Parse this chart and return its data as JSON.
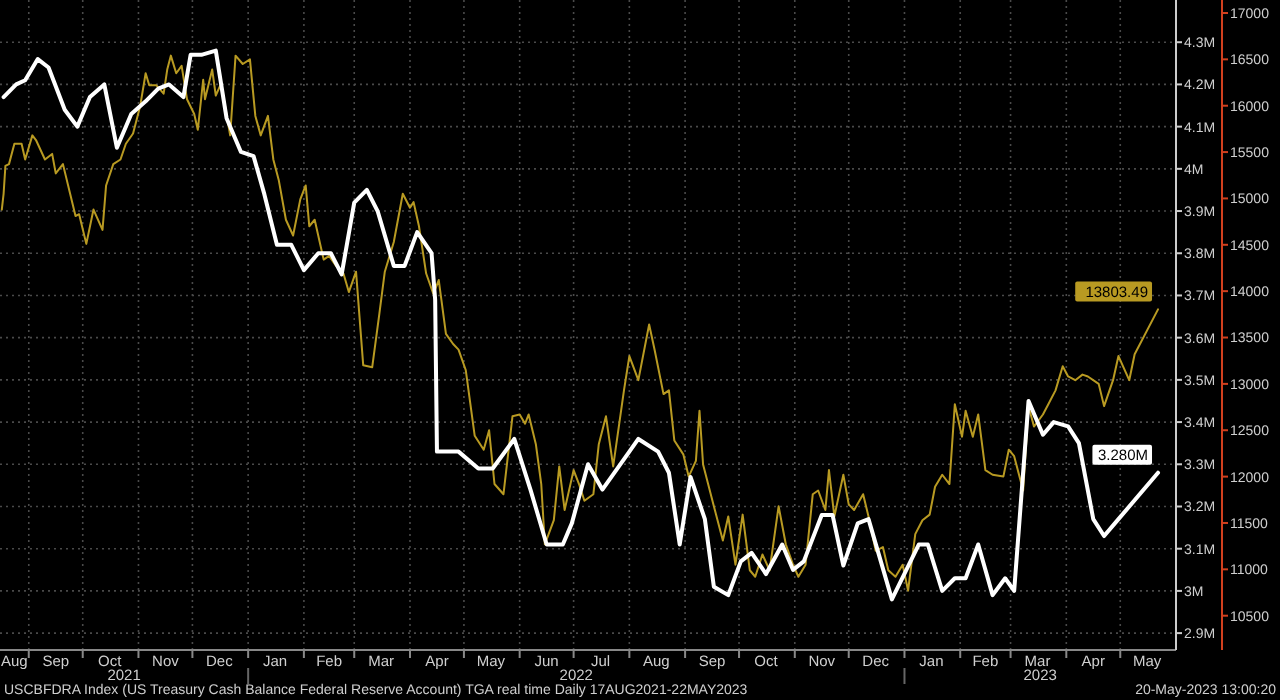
{
  "chart_data": {
    "type": "line",
    "xlim": [
      "2021-08-16",
      "2023-06-01"
    ],
    "xticks": [
      {
        "value": "2021-09-01",
        "label": null
      },
      {
        "value": "2021-10-01",
        "label": null
      },
      {
        "value": "2021-11-01",
        "label": null
      },
      {
        "value": "2021-12-01",
        "label": null
      },
      {
        "value": "2022-01-01",
        "label": null
      },
      {
        "value": "2022-02-01",
        "label": null
      },
      {
        "value": "2022-03-01",
        "label": null
      },
      {
        "value": "2022-04-01",
        "label": null
      },
      {
        "value": "2022-05-01",
        "label": null
      },
      {
        "value": "2022-06-01",
        "label": null
      },
      {
        "value": "2022-07-01",
        "label": null
      },
      {
        "value": "2022-08-01",
        "label": null
      },
      {
        "value": "2022-09-01",
        "label": null
      },
      {
        "value": "2022-10-01",
        "label": null
      },
      {
        "value": "2022-11-01",
        "label": null
      },
      {
        "value": "2022-12-01",
        "label": null
      },
      {
        "value": "2023-01-01",
        "label": null
      },
      {
        "value": "2023-02-01",
        "label": null
      },
      {
        "value": "2023-03-01",
        "label": null
      },
      {
        "value": "2023-04-01",
        "label": null
      },
      {
        "value": "2023-05-01",
        "label": null
      },
      {
        "value": "2021-08-24",
        "label": "Aug"
      },
      {
        "value": "2021-09-16",
        "label": "Sep"
      },
      {
        "value": "2021-10-16",
        "label": "Oct"
      },
      {
        "value": "2021-11-16",
        "label": "Nov"
      },
      {
        "value": "2021-12-16",
        "label": "Dec"
      },
      {
        "value": "2022-01-16",
        "label": "Jan"
      },
      {
        "value": "2022-02-15",
        "label": "Feb"
      },
      {
        "value": "2022-03-16",
        "label": "Mar"
      },
      {
        "value": "2022-04-16",
        "label": "Apr"
      },
      {
        "value": "2022-05-16",
        "label": "May"
      },
      {
        "value": "2022-06-16",
        "label": "Jun"
      },
      {
        "value": "2022-07-16",
        "label": "Jul"
      },
      {
        "value": "2022-08-16",
        "label": "Aug"
      },
      {
        "value": "2022-09-16",
        "label": "Sep"
      },
      {
        "value": "2022-10-16",
        "label": "Oct"
      },
      {
        "value": "2022-11-16",
        "label": "Nov"
      },
      {
        "value": "2022-12-16",
        "label": "Dec"
      },
      {
        "value": "2023-01-16",
        "label": "Jan"
      },
      {
        "value": "2023-02-15",
        "label": "Feb"
      },
      {
        "value": "2023-03-16",
        "label": "Mar"
      },
      {
        "value": "2023-04-16",
        "label": "Apr"
      },
      {
        "value": "2023-05-16",
        "label": "May"
      }
    ],
    "ylim": [
      2.86,
      4.4
    ],
    "yticks": [
      {
        "value": 2.9,
        "label": "2.9M"
      },
      {
        "value": 3,
        "label": "3M"
      },
      {
        "value": 3.1,
        "label": "3.1M"
      },
      {
        "value": 3.2,
        "label": "3.2M"
      },
      {
        "value": 3.3,
        "label": "3.3M"
      },
      {
        "value": 3.4,
        "label": "3.4M"
      },
      {
        "value": 3.5,
        "label": "3.5M"
      },
      {
        "value": 3.6,
        "label": "3.6M"
      },
      {
        "value": 3.7,
        "label": "3.7M"
      },
      {
        "value": 3.8,
        "label": "3.8M"
      },
      {
        "value": 3.9,
        "label": "3.9M"
      },
      {
        "value": 4,
        "label": "4M"
      },
      {
        "value": 4.1,
        "label": "4.1M"
      },
      {
        "value": 4.2,
        "label": "4.2M"
      },
      {
        "value": 4.3,
        "label": "4.3M"
      }
    ],
    "y2lim": [
      10130,
      17140
    ],
    "y2ticks": [
      10500,
      11000,
      11500,
      12000,
      12500,
      13000,
      13500,
      14000,
      14500,
      15000,
      15500,
      16000,
      16500,
      17000
    ],
    "grid": true,
    "annotations": [
      "2021",
      "2022",
      "2023",
      "USCBFDRA Index (US Treasury Cash Balance Federal Reserve Account) TGA real time  Daily 17AUG2021-22MAY2023",
      "20-May-2023 13:00:20"
    ],
    "series": [
      {
        "color": "#b89a22",
        "axis": "y2",
        "x": [
          "2021-08-17",
          "2021-08-18",
          "2021-08-19",
          "2021-08-21",
          "2021-08-24",
          "2021-08-28",
          "2021-08-30",
          "2021-09-03",
          "2021-09-05",
          "2021-09-10",
          "2021-09-14",
          "2021-09-16",
          "2021-09-20",
          "2021-09-24",
          "2021-09-27",
          "2021-09-29",
          "2021-10-03",
          "2021-10-07",
          "2021-10-12",
          "2021-10-14",
          "2021-10-18",
          "2021-10-22",
          "2021-10-25",
          "2021-10-29",
          "2021-11-02",
          "2021-11-05",
          "2021-11-07",
          "2021-11-11",
          "2021-11-15",
          "2021-11-17",
          "2021-11-19",
          "2021-11-22",
          "2021-11-25",
          "2021-11-28",
          "2021-12-02",
          "2021-12-04",
          "2021-12-07",
          "2021-12-08",
          "2021-12-12",
          "2021-12-14",
          "2021-12-17",
          "2021-12-22",
          "2021-12-25",
          "2021-12-29",
          "2022-01-02",
          "2022-01-05",
          "2022-01-08",
          "2022-01-12",
          "2022-01-15",
          "2022-01-18",
          "2022-01-22",
          "2022-01-26",
          "2022-01-30",
          "2022-02-02",
          "2022-02-04",
          "2022-02-07",
          "2022-02-12",
          "2022-02-15",
          "2022-02-19",
          "2022-02-23",
          "2022-02-26",
          "2022-03-02",
          "2022-03-06",
          "2022-03-11",
          "2022-03-15",
          "2022-03-18",
          "2022-03-23",
          "2022-03-28",
          "2022-04-01",
          "2022-04-03",
          "2022-04-06",
          "2022-04-10",
          "2022-04-14",
          "2022-04-17",
          "2022-04-21",
          "2022-04-25",
          "2022-04-28",
          "2022-05-02",
          "2022-05-07",
          "2022-05-12",
          "2022-05-15",
          "2022-05-18",
          "2022-05-23",
          "2022-05-28",
          "2022-06-01",
          "2022-06-04",
          "2022-06-06",
          "2022-06-10",
          "2022-06-13",
          "2022-06-15",
          "2022-06-20",
          "2022-06-23",
          "2022-06-26",
          "2022-07-01",
          "2022-07-04",
          "2022-07-07",
          "2022-07-12",
          "2022-07-15",
          "2022-07-19",
          "2022-07-23",
          "2022-07-29",
          "2022-08-01",
          "2022-08-06",
          "2022-08-12",
          "2022-08-15",
          "2022-08-20",
          "2022-08-23",
          "2022-08-26",
          "2022-08-31",
          "2022-09-03",
          "2022-09-07",
          "2022-09-09",
          "2022-09-11",
          "2022-09-17",
          "2022-09-22",
          "2022-09-25",
          "2022-09-29",
          "2022-10-03",
          "2022-10-07",
          "2022-10-10",
          "2022-10-14",
          "2022-10-18",
          "2022-10-23",
          "2022-10-27",
          "2022-10-31",
          "2022-11-03",
          "2022-11-07",
          "2022-11-11",
          "2022-11-14",
          "2022-11-18",
          "2022-11-20",
          "2022-11-23",
          "2022-11-28",
          "2022-12-01",
          "2022-12-04",
          "2022-12-09",
          "2022-12-12",
          "2022-12-16",
          "2022-12-20",
          "2022-12-23",
          "2022-12-27",
          "2022-12-31",
          "2023-01-03",
          "2023-01-07",
          "2023-01-11",
          "2023-01-15",
          "2023-01-18",
          "2023-01-22",
          "2023-01-26",
          "2023-01-29",
          "2023-02-02",
          "2023-02-04",
          "2023-02-08",
          "2023-02-11",
          "2023-02-15",
          "2023-02-19",
          "2023-02-25",
          "2023-02-28",
          "2023-03-03",
          "2023-03-08",
          "2023-03-11",
          "2023-03-14",
          "2023-03-19",
          "2023-03-22",
          "2023-03-26",
          "2023-03-30",
          "2023-04-02",
          "2023-04-06",
          "2023-04-10",
          "2023-04-13",
          "2023-04-19",
          "2023-04-22",
          "2023-04-27",
          "2023-04-30",
          "2023-05-06",
          "2023-05-09",
          "2023-05-22"
        ],
        "values": [
          14880,
          15050,
          15350,
          15370,
          15590,
          15590,
          15420,
          15680,
          15630,
          15420,
          15480,
          15270,
          15370,
          15050,
          14810,
          14830,
          14510,
          14880,
          14660,
          15140,
          15370,
          15420,
          15590,
          15700,
          16000,
          16350,
          16220,
          16220,
          16130,
          16390,
          16540,
          16350,
          16430,
          16070,
          15910,
          15740,
          16280,
          16070,
          16390,
          16110,
          16240,
          15680,
          16540,
          16450,
          16500,
          15890,
          15680,
          15890,
          15420,
          15200,
          14770,
          14600,
          14990,
          15140,
          14700,
          14770,
          14340,
          14380,
          14270,
          14190,
          13990,
          14210,
          13200,
          13180,
          13760,
          14210,
          14530,
          15050,
          14900,
          14960,
          14700,
          14190,
          13970,
          14120,
          13540,
          13430,
          13370,
          13150,
          12440,
          12290,
          12500,
          11920,
          11810,
          12650,
          12670,
          12570,
          12670,
          12350,
          11920,
          11270,
          11530,
          12110,
          11640,
          12070,
          11920,
          11740,
          11810,
          12350,
          12650,
          12110,
          12930,
          13300,
          13040,
          13640,
          13370,
          12890,
          12930,
          12390,
          12240,
          12000,
          12170,
          12710,
          12130,
          11680,
          11310,
          11570,
          11050,
          11590,
          10990,
          10920,
          11160,
          10990,
          11680,
          11270,
          11050,
          10920,
          11050,
          11810,
          11850,
          11640,
          12070,
          11570,
          12020,
          11700,
          11640,
          11810,
          11570,
          11200,
          11240,
          10990,
          10920,
          11050,
          10770,
          11380,
          11530,
          11590,
          11890,
          12020,
          11920,
          12780,
          12430,
          12710,
          12430,
          12670,
          12070,
          12020,
          12000,
          12290,
          12220,
          11850,
          12760,
          12540,
          12670,
          12780,
          12930,
          13190,
          13080,
          13040,
          13100,
          13080,
          13000,
          12760,
          13040,
          13300,
          13040,
          13320,
          13803.49
        ],
        "value_labels": [
          null,
          null,
          null,
          null,
          null,
          null,
          null,
          null,
          null,
          null,
          null,
          null,
          null,
          null,
          null,
          null,
          null,
          null,
          null,
          null,
          null,
          null,
          null,
          null,
          null,
          null,
          null,
          null,
          null,
          null,
          null,
          null,
          null,
          null,
          null,
          null,
          null,
          null,
          null,
          null,
          null,
          null,
          null,
          null,
          null,
          null,
          null,
          null,
          null,
          null,
          null,
          null,
          null,
          null,
          null,
          null,
          null,
          null,
          null,
          null,
          null,
          null,
          null,
          null,
          null,
          null,
          null,
          null,
          null,
          null,
          null,
          null,
          null,
          null,
          null,
          null,
          null,
          null,
          null,
          null,
          null,
          null,
          null,
          null,
          null,
          null,
          null,
          null,
          null,
          null,
          null,
          null,
          null,
          null,
          null,
          null,
          null,
          null,
          null,
          null,
          null,
          null,
          null,
          null,
          null,
          null,
          null,
          null,
          null,
          null,
          null,
          null,
          null,
          null,
          null,
          null,
          null,
          null,
          null,
          null,
          null,
          null,
          null,
          null,
          null,
          null,
          null,
          null,
          null,
          null,
          null,
          null,
          null,
          null,
          null,
          null,
          null,
          null,
          null,
          null,
          null,
          null,
          null,
          null,
          null,
          null,
          null,
          null,
          null,
          null,
          null,
          null,
          null,
          null,
          null,
          null,
          null,
          null,
          null,
          null,
          null,
          null,
          null,
          null,
          null,
          null,
          null,
          null,
          null,
          null,
          null,
          null,
          null,
          null,
          null,
          null,
          "13803.49"
        ]
      },
      {
        "color": "#ffffff",
        "axis": "y",
        "x": [
          "2021-08-18",
          "2021-08-25",
          "2021-08-30",
          "2021-09-06",
          "2021-09-12",
          "2021-09-21",
          "2021-09-28",
          "2021-10-05",
          "2021-10-13",
          "2021-10-20",
          "2021-10-28",
          "2021-11-05",
          "2021-11-12",
          "2021-11-18",
          "2021-11-26",
          "2021-11-30",
          "2021-12-06",
          "2021-12-14",
          "2021-12-20",
          "2021-12-28",
          "2022-01-04",
          "2022-01-10",
          "2022-01-17",
          "2022-01-25",
          "2022-02-01",
          "2022-02-09",
          "2022-02-16",
          "2022-02-22",
          "2022-03-01",
          "2022-03-08",
          "2022-03-14",
          "2022-03-23",
          "2022-03-29",
          "2022-04-05",
          "2022-04-13",
          "2022-04-15",
          "2022-04-16",
          "2022-04-28",
          "2022-05-09",
          "2022-05-17",
          "2022-05-29",
          "2022-06-07",
          "2022-06-16",
          "2022-06-25",
          "2022-06-30",
          "2022-07-09",
          "2022-07-17",
          "2022-08-01",
          "2022-08-06",
          "2022-08-17",
          "2022-08-23",
          "2022-08-29",
          "2022-09-04",
          "2022-09-12",
          "2022-09-17",
          "2022-09-25",
          "2022-10-02",
          "2022-10-08",
          "2022-10-16",
          "2022-10-25",
          "2022-10-31",
          "2022-11-06",
          "2022-11-16",
          "2022-11-22",
          "2022-11-28",
          "2022-12-06",
          "2022-12-12",
          "2022-12-25",
          "2023-01-09",
          "2023-01-14",
          "2023-01-22",
          "2023-01-29",
          "2023-02-04",
          "2023-02-11",
          "2023-02-19",
          "2023-02-26",
          "2023-03-03",
          "2023-03-11",
          "2023-03-19",
          "2023-03-25",
          "2023-04-02",
          "2023-04-08",
          "2023-04-16",
          "2023-04-22",
          "2023-04-30",
          "2023-05-22"
        ],
        "values": [
          4.17,
          4.2,
          4.21,
          4.26,
          4.24,
          4.14,
          4.1,
          4.17,
          4.2,
          4.05,
          4.13,
          4.16,
          4.19,
          4.2,
          4.17,
          4.27,
          4.27,
          4.28,
          4.12,
          4.04,
          4.03,
          3.94,
          3.82,
          3.82,
          3.76,
          3.8,
          3.8,
          3.75,
          3.92,
          3.95,
          3.9,
          3.77,
          3.77,
          3.85,
          3.8,
          3.69,
          3.33,
          3.33,
          3.29,
          3.29,
          3.36,
          3.24,
          3.11,
          3.11,
          3.16,
          3.3,
          3.24,
          3.33,
          3.36,
          3.33,
          3.28,
          3.11,
          3.27,
          3.17,
          3.01,
          2.99,
          3.07,
          3.09,
          3.04,
          3.11,
          3.05,
          3.07,
          3.18,
          3.18,
          3.06,
          3.16,
          3.17,
          2.98,
          3.11,
          3.11,
          3,
          3.03,
          3.03,
          3.11,
          2.99,
          3.03,
          3,
          3.45,
          3.37,
          3.4,
          3.39,
          3.35,
          3.17,
          3.13,
          3.17,
          3.28
        ],
        "value_labels": [
          null,
          null,
          null,
          null,
          null,
          null,
          null,
          null,
          null,
          null,
          null,
          null,
          null,
          null,
          null,
          null,
          null,
          null,
          null,
          null,
          null,
          null,
          null,
          null,
          null,
          null,
          null,
          null,
          null,
          null,
          null,
          null,
          null,
          null,
          null,
          null,
          null,
          null,
          null,
          null,
          null,
          null,
          null,
          null,
          null,
          null,
          null,
          null,
          null,
          null,
          null,
          null,
          null,
          null,
          null,
          null,
          null,
          null,
          null,
          null,
          null,
          null,
          null,
          null,
          null,
          null,
          null,
          null,
          null,
          null,
          null,
          null,
          null,
          null,
          null,
          null,
          null,
          null,
          null,
          null,
          null,
          null,
          null,
          null,
          null,
          "3.280M"
        ]
      }
    ]
  }
}
